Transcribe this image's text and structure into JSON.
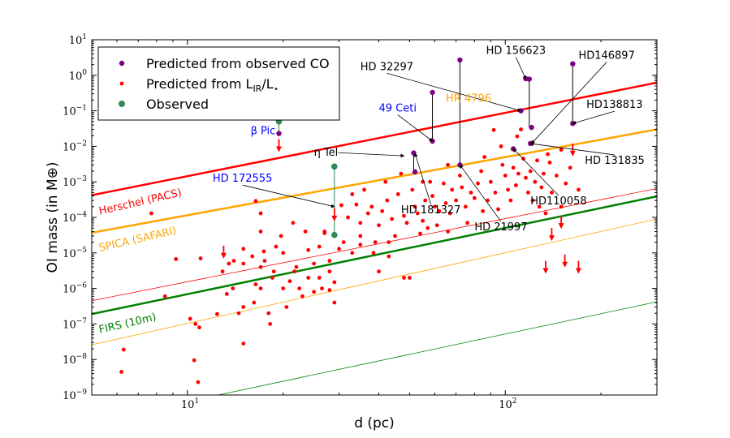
{
  "chart_data": {
    "type": "scatter",
    "title": "",
    "xlabel": "d (pc)",
    "ylabel": "OI mass (in M⊕)",
    "xscale": "log",
    "yscale": "log",
    "xlim": [
      5,
      300
    ],
    "ylim": [
      1e-09,
      10
    ],
    "grid": false,
    "legend_position": "top-left",
    "x_tick_labels": [
      {
        "v": 10,
        "base": "10",
        "exp": "1"
      },
      {
        "v": 100,
        "base": "10",
        "exp": "2"
      }
    ],
    "y_tick_labels": [
      {
        "v": 1e-09,
        "base": "10",
        "exp": "−9"
      },
      {
        "v": 1e-08,
        "base": "10",
        "exp": "−8"
      },
      {
        "v": 1e-07,
        "base": "10",
        "exp": "−7"
      },
      {
        "v": 1e-06,
        "base": "10",
        "exp": "−6"
      },
      {
        "v": 1e-05,
        "base": "10",
        "exp": "−5"
      },
      {
        "v": 0.0001,
        "base": "10",
        "exp": "−4"
      },
      {
        "v": 0.001,
        "base": "10",
        "exp": "−3"
      },
      {
        "v": 0.01,
        "base": "10",
        "exp": "−2"
      },
      {
        "v": 0.1,
        "base": "10",
        "exp": "−1"
      },
      {
        "v": 1,
        "base": "10",
        "exp": "0"
      },
      {
        "v": 10,
        "base": "10",
        "exp": "1"
      }
    ],
    "legend": [
      {
        "label": "Predicted from observed CO",
        "color": "#800080",
        "marker": "dot-small"
      },
      {
        "label": "Predicted from L",
        "sub": "IR",
        "label2": "/L",
        "sub2": "⋆",
        "color": "#ff0000",
        "marker": "dot-tiny"
      },
      {
        "label": "Observed",
        "color": "#2e8b57",
        "marker": "dot-large"
      }
    ],
    "sensitivity_lines": [
      {
        "name": "Herschel (PACS)",
        "color": "#ff0000",
        "width": 2.5,
        "points": [
          [
            5,
            0.00042
          ],
          [
            300,
            0.62
          ]
        ],
        "label_at": [
          5.3,
          0.00012
        ],
        "label_angle": -13
      },
      {
        "name": "",
        "color": "#ff0000",
        "width": 0.8,
        "points": [
          [
            5,
            4.5e-07
          ],
          [
            300,
            0.00065
          ]
        ]
      },
      {
        "name": "SPICA (SAFARI)",
        "color": "#ffa500",
        "width": 2.5,
        "points": [
          [
            5,
            3.7e-05
          ],
          [
            300,
            0.03
          ]
        ],
        "label_at": [
          5.3,
          1.1e-05
        ],
        "label_angle": -13
      },
      {
        "name": "",
        "color": "#ffa500",
        "width": 0.8,
        "points": [
          [
            5,
            2.6e-08
          ],
          [
            300,
            9e-05
          ]
        ]
      },
      {
        "name": "FIRS (10m)",
        "color": "#008000",
        "width": 2.5,
        "points": [
          [
            5,
            1.9e-07
          ],
          [
            300,
            0.00039
          ]
        ],
        "label_at": [
          5.3,
          5.5e-08
        ],
        "label_angle": -13
      },
      {
        "name": "",
        "color": "#008000",
        "width": 0.8,
        "points": [
          [
            12.5,
            1e-09
          ],
          [
            300,
            4.2e-07
          ]
        ]
      }
    ],
    "series": [
      {
        "name": "Predicted from L_IR/L_star",
        "color": "#ff0000",
        "marker": "dot",
        "points": [
          [
            6.2,
            4.5e-09
          ],
          [
            6.3,
            1.9e-08
          ],
          [
            7.7,
            0.00013
          ],
          [
            9.2,
            6.7e-06
          ],
          [
            10.2,
            1.4e-07
          ],
          [
            10.6,
            1e-07
          ],
          [
            10.5,
            9.5e-09
          ],
          [
            10.8,
            2.3e-09
          ],
          [
            10.9,
            8e-08
          ],
          [
            11,
            7e-06
          ],
          [
            12.4,
            1.9e-07
          ],
          [
            12.9,
            3e-06
          ],
          [
            13.5,
            5e-06
          ],
          [
            13.3,
            7e-07
          ],
          [
            13.9,
            1e-06
          ],
          [
            14,
            6e-06
          ],
          [
            14.5,
            2e-07
          ],
          [
            15,
            1.3e-05
          ],
          [
            15,
            5e-06
          ],
          [
            15,
            3e-07
          ],
          [
            15,
            2.8e-08
          ],
          [
            16,
            8e-06
          ],
          [
            16.4,
            1.3e-06
          ],
          [
            16.2,
            4e-07
          ],
          [
            16.4,
            0.00029
          ],
          [
            17,
            0.00013
          ],
          [
            17,
            4e-05
          ],
          [
            17,
            4e-06
          ],
          [
            17,
            1e-06
          ],
          [
            17.5,
            6e-06
          ],
          [
            17.4,
            1.1e-05
          ],
          [
            18,
            2e-07
          ],
          [
            18.5,
            2e-06
          ],
          [
            18.2,
            1e-07
          ],
          [
            19,
            1.5e-05
          ],
          [
            18.7,
            3e-06
          ],
          [
            19.7,
            3e-05
          ],
          [
            20,
            1e-05
          ],
          [
            20,
            1e-06
          ],
          [
            20.5,
            3e-07
          ],
          [
            21.5,
            7e-05
          ],
          [
            21,
            1.6e-06
          ],
          [
            21.7,
            3e-06
          ],
          [
            22,
            4e-06
          ],
          [
            22.5,
            1e-06
          ],
          [
            23,
            6e-07
          ],
          [
            23.5,
            4e-05
          ],
          [
            24,
            1.2e-05
          ],
          [
            24,
            2e-06
          ],
          [
            25,
            5e-06
          ],
          [
            25,
            8e-07
          ],
          [
            26,
            1.5e-05
          ],
          [
            26,
            2e-06
          ],
          [
            26.5,
            1e-06
          ],
          [
            27,
            4e-05
          ],
          [
            28,
            6e-06
          ],
          [
            28,
            3e-06
          ],
          [
            28,
            9e-07
          ],
          [
            29,
            1.5e-06
          ],
          [
            30,
            1.3e-05
          ],
          [
            30.5,
            0.00022
          ],
          [
            31,
            2e-05
          ],
          [
            32,
            0.0001
          ],
          [
            33,
            0.00045
          ],
          [
            33,
            1e-05
          ],
          [
            34,
            0.00023
          ],
          [
            35,
            7e-05
          ],
          [
            35,
            3e-05
          ],
          [
            36,
            0.0006
          ],
          [
            37,
            0.00013
          ],
          [
            38,
            0.0002
          ],
          [
            38.5,
            1e-05
          ],
          [
            39,
            2e-05
          ],
          [
            40,
            6e-05
          ],
          [
            41,
            0.00015
          ],
          [
            42,
            0.001
          ],
          [
            42.5,
            0.0003
          ],
          [
            43,
            8e-06
          ],
          [
            43,
            2e-05
          ],
          [
            44,
            9e-05
          ],
          [
            45,
            3e-05
          ],
          [
            46,
            0.00045
          ],
          [
            47,
            0.0017
          ],
          [
            48,
            0.00011
          ],
          [
            49,
            7e-05
          ],
          [
            50,
            2e-06
          ],
          [
            51,
            0.0006
          ],
          [
            52,
            0.0002
          ],
          [
            53,
            0.00013
          ],
          [
            54,
            3.5e-05
          ],
          [
            55,
            8e-05
          ],
          [
            55,
            0.001
          ],
          [
            56,
            0.0003
          ],
          [
            57,
            5e-05
          ],
          [
            58,
            0.001
          ],
          [
            59,
            0.0004
          ],
          [
            60,
            0.0002
          ],
          [
            61,
            6e-05
          ],
          [
            62,
            0.00015
          ],
          [
            64,
            0.0009
          ],
          [
            65,
            0.00025
          ],
          [
            66,
            4e-05
          ],
          [
            67,
            0.00013
          ],
          [
            68,
            0.0006
          ],
          [
            70,
            0.0003
          ],
          [
            72,
            0.0015
          ],
          [
            73,
            0.0007
          ],
          [
            75,
            0.0002
          ],
          [
            76,
            7e-05
          ],
          [
            78,
            0.0005
          ],
          [
            80,
            0.00035
          ],
          [
            82,
            0.0009
          ],
          [
            84,
            0.002
          ],
          [
            85,
            0.00015
          ],
          [
            86,
            0.005
          ],
          [
            88,
            0.0003
          ],
          [
            90,
            0.001
          ],
          [
            92,
            0.029
          ],
          [
            93,
            0.0005
          ],
          [
            95,
            0.00017
          ],
          [
            97,
            0.01
          ],
          [
            98,
            0.003
          ],
          [
            100,
            0.0015
          ],
          [
            102,
            0.0006
          ],
          [
            104,
            0.0003
          ],
          [
            106,
            0.0025
          ],
          [
            108,
            0.0008
          ],
          [
            109,
            0.019
          ],
          [
            110,
            0.0017
          ],
          [
            112,
            0.03
          ],
          [
            114,
            0.0045
          ],
          [
            116,
            0.0013
          ],
          [
            118,
            0.0005
          ],
          [
            120,
            0.002
          ],
          [
            122,
            0.0003
          ],
          [
            124,
            0.001
          ],
          [
            126,
            0.004
          ],
          [
            128,
            0.0002
          ],
          [
            130,
            0.0007
          ],
          [
            132,
            0.0017
          ],
          [
            134,
            0.00013
          ],
          [
            136,
            0.006
          ],
          [
            138,
            0.0035
          ],
          [
            140,
            0.0005
          ],
          [
            145,
            0.0015
          ],
          [
            150,
            0.0002
          ],
          [
            155,
            0.0009
          ],
          [
            160,
            0.0025
          ],
          [
            170,
            0.0006
          ],
          [
            48,
            2e-06
          ],
          [
            35,
            1.7e-05
          ],
          [
            27,
            3.6e-05
          ],
          [
            8.5,
            6e-07
          ],
          [
            29,
            4e-07
          ],
          [
            40,
            3e-06
          ],
          [
            66,
            0.003
          ],
          [
            150,
            0.008
          ]
        ]
      },
      {
        "name": "Predicted from observed CO",
        "color": "#800080",
        "marker": "dot",
        "points": [
          [
            19.4,
            0.023
          ],
          [
            51.5,
            0.0065
          ],
          [
            52,
            0.0019
          ],
          [
            59,
            0.33
          ],
          [
            59,
            0.014
          ],
          [
            72,
            2.7
          ],
          [
            72,
            0.003
          ],
          [
            112,
            0.1
          ],
          [
            116,
            0.8
          ],
          [
            119,
            0.78
          ],
          [
            121,
            0.034
          ],
          [
            120,
            0.012
          ],
          [
            106,
            0.0085
          ],
          [
            163,
            2.1
          ],
          [
            163,
            0.044
          ]
        ]
      },
      {
        "name": "Observed",
        "color": "#2e8b57",
        "marker": "dot",
        "points": [
          [
            19.4,
            0.05
          ],
          [
            29,
            0.0027
          ],
          [
            29,
            3.2e-05
          ]
        ]
      }
    ],
    "connectors": [
      {
        "x": 19.4,
        "y1": 0.05,
        "y2": 0.023,
        "color": "#2e8b57"
      },
      {
        "x": 29,
        "y1": 0.0027,
        "y2": 3.2e-05,
        "color": "#2e8b57"
      },
      {
        "x": 59,
        "y1": 0.33,
        "y2": 0.014,
        "color": "#000000"
      },
      {
        "x": 72,
        "y1": 2.7,
        "y2": 0.003,
        "color": "#000000"
      },
      {
        "x": 119,
        "y1": 0.78,
        "y2": 0.034,
        "color": "#000000"
      },
      {
        "x": 163,
        "y1": 2.1,
        "y2": 0.044,
        "color": "#000000"
      },
      {
        "x": 51.5,
        "y1": 0.0065,
        "y2": 0.0019,
        "color": "#000000"
      }
    ],
    "upper_limits": [
      [
        19.4,
        0.016
      ],
      [
        29,
        0.00018
      ],
      [
        13,
        1.6e-05
      ],
      [
        163,
        0.012
      ],
      [
        150,
        0.00011
      ],
      [
        140,
        5e-05
      ],
      [
        154,
        9e-06
      ],
      [
        134,
        6e-06
      ],
      [
        170,
        6e-06
      ]
    ],
    "annotations": [
      {
        "text": "β Pic",
        "at": [
          15.8,
          0.022
        ],
        "color": "#0000ff"
      },
      {
        "text": "η Tel",
        "at": [
          25,
          0.0055
        ],
        "color": "#000000",
        "arrow_to": [
          48,
          0.0054
        ]
      },
      {
        "text": "HD 172555",
        "at": [
          12,
          0.001
        ],
        "color": "#0000ff",
        "arrow_to": [
          29,
          0.0002
        ]
      },
      {
        "text": "49 Ceti",
        "at": [
          40,
          0.095
        ],
        "color": "#0000ff",
        "arrow_to": [
          59,
          0.014
        ]
      },
      {
        "text": "HD 32297",
        "at": [
          35,
          1.4
        ],
        "color": "#000000",
        "arrow_to": [
          112,
          0.1
        ]
      },
      {
        "text": "HR 4796",
        "at": [
          65,
          0.18
        ],
        "color": "#ffa500"
      },
      {
        "text": "HD 156623",
        "at": [
          87,
          4.0
        ],
        "color": "#000000",
        "arrow_to": [
          116,
          0.78
        ]
      },
      {
        "text": "HD146897",
        "at": [
          170,
          2.9
        ],
        "color": "#000000",
        "arrow_to": [
          121,
          0.012
        ]
      },
      {
        "text": "HD138813",
        "at": [
          180,
          0.12
        ],
        "color": "#000000",
        "arrow_to": [
          163,
          0.044
        ]
      },
      {
        "text": "HD 131835",
        "at": [
          178,
          0.0032
        ],
        "color": "#000000",
        "arrow_to": [
          120,
          0.012
        ]
      },
      {
        "text": "HD 181327",
        "at": [
          47,
          0.00013
        ],
        "color": "#000000",
        "arrow_to": [
          52,
          0.0063
        ]
      },
      {
        "text": "HD110058",
        "at": [
          120,
          0.00023
        ],
        "color": "#000000",
        "arrow_to": [
          106,
          0.0085
        ]
      },
      {
        "text": "HD 21997",
        "at": [
          80,
          4.3e-05
        ],
        "color": "#000000",
        "arrow_to": [
          72,
          0.003
        ]
      }
    ]
  }
}
